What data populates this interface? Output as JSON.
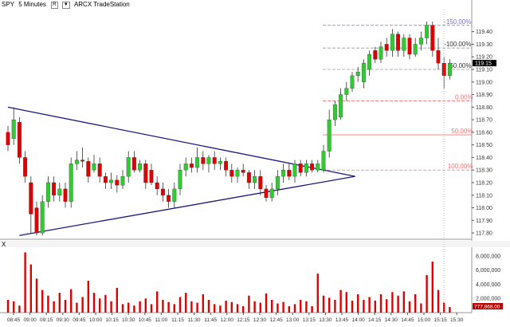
{
  "header": {
    "symbol": "SPY",
    "interval": "5 Minutes",
    "badge_r": "R",
    "badge_arrow": "▼",
    "source": "ARCX TradeStation"
  },
  "colors": {
    "up": "#2ecc2e",
    "down": "#e00000",
    "triangle": "#1a1a7a",
    "fib_blue": "#7070c8",
    "fib_red": "#ff7070",
    "volume": "#e00000",
    "price_marker_bg": "#000000"
  },
  "volume_panel": {
    "label": "X",
    "last_volume_label": "777,868.00"
  },
  "chart_data": {
    "type": "candlestick",
    "price_axis": {
      "ylim": [
        117.75,
        119.55
      ],
      "ticks": [
        "119.40",
        "119.30",
        "119.20",
        "119.10",
        "119.00",
        "118.90",
        "118.80",
        "118.70",
        "118.60",
        "118.50",
        "118.40",
        "118.30",
        "118.20",
        "118.10",
        "118.00",
        "117.90",
        "117.80"
      ],
      "last_price": "119.15"
    },
    "time_axis": {
      "labels": [
        "08:45",
        "09:00",
        "09:15",
        "09:30",
        "09:45",
        "10:00",
        "10:15",
        "10:30",
        "10:45",
        "11:00",
        "11:15",
        "11:30",
        "11:45",
        "12:00",
        "12:15",
        "12:30",
        "12:45",
        "13:00",
        "13:15",
        "13:30",
        "13:45",
        "14:00",
        "14:15",
        "14:30",
        "14:45",
        "15:00",
        "15:15",
        "15:30"
      ]
    },
    "candles": [
      {
        "o": 118.6,
        "c": 118.5,
        "h": 118.65,
        "l": 118.45
      },
      {
        "o": 118.55,
        "c": 118.7,
        "h": 118.8,
        "l": 118.5
      },
      {
        "o": 118.68,
        "c": 118.4,
        "h": 118.72,
        "l": 118.35
      },
      {
        "o": 118.4,
        "c": 118.25,
        "h": 118.45,
        "l": 118.2
      },
      {
        "o": 118.2,
        "c": 117.95,
        "h": 118.25,
        "l": 117.8
      },
      {
        "o": 118.0,
        "c": 117.8,
        "h": 118.05,
        "l": 117.78
      },
      {
        "o": 117.8,
        "c": 118.05,
        "h": 118.1,
        "l": 117.78
      },
      {
        "o": 118.05,
        "c": 118.2,
        "h": 118.25,
        "l": 118.0
      },
      {
        "o": 118.2,
        "c": 118.1,
        "h": 118.25,
        "l": 118.05
      },
      {
        "o": 118.1,
        "c": 118.15,
        "h": 118.2,
        "l": 118.05
      },
      {
        "o": 118.15,
        "c": 118.05,
        "h": 118.2,
        "l": 118.0
      },
      {
        "o": 118.05,
        "c": 118.35,
        "h": 118.4,
        "l": 118.0
      },
      {
        "o": 118.35,
        "c": 118.38,
        "h": 118.45,
        "l": 118.3
      },
      {
        "o": 118.38,
        "c": 118.37,
        "h": 118.48,
        "l": 118.32
      },
      {
        "o": 118.37,
        "c": 118.25,
        "h": 118.4,
        "l": 118.2
      },
      {
        "o": 118.3,
        "c": 118.35,
        "h": 118.42,
        "l": 118.28
      },
      {
        "o": 118.35,
        "c": 118.25,
        "h": 118.4,
        "l": 118.2
      },
      {
        "o": 118.25,
        "c": 118.2,
        "h": 118.28,
        "l": 118.15
      },
      {
        "o": 118.2,
        "c": 118.22,
        "h": 118.28,
        "l": 118.15
      },
      {
        "o": 118.22,
        "c": 118.18,
        "h": 118.26,
        "l": 118.12
      },
      {
        "o": 118.18,
        "c": 118.25,
        "h": 118.3,
        "l": 118.15
      },
      {
        "o": 118.25,
        "c": 118.4,
        "h": 118.45,
        "l": 118.2
      },
      {
        "o": 118.4,
        "c": 118.3,
        "h": 118.45,
        "l": 118.28
      },
      {
        "o": 118.3,
        "c": 118.35,
        "h": 118.38,
        "l": 118.28
      },
      {
        "o": 118.35,
        "c": 118.2,
        "h": 118.38,
        "l": 118.15
      },
      {
        "o": 118.3,
        "c": 118.2,
        "h": 118.35,
        "l": 118.18
      },
      {
        "o": 118.2,
        "c": 118.15,
        "h": 118.25,
        "l": 118.1
      },
      {
        "o": 118.15,
        "c": 118.1,
        "h": 118.2,
        "l": 118.05
      },
      {
        "o": 118.1,
        "c": 118.05,
        "h": 118.15,
        "l": 118.0
      },
      {
        "o": 118.05,
        "c": 118.15,
        "h": 118.2,
        "l": 118.0
      },
      {
        "o": 118.15,
        "c": 118.3,
        "h": 118.35,
        "l": 118.1
      },
      {
        "o": 118.3,
        "c": 118.35,
        "h": 118.4,
        "l": 118.25
      },
      {
        "o": 118.35,
        "c": 118.32,
        "h": 118.4,
        "l": 118.28
      },
      {
        "o": 118.32,
        "c": 118.4,
        "h": 118.48,
        "l": 118.28
      },
      {
        "o": 118.4,
        "c": 118.35,
        "h": 118.45,
        "l": 118.3
      },
      {
        "o": 118.35,
        "c": 118.4,
        "h": 118.42,
        "l": 118.28
      },
      {
        "o": 118.4,
        "c": 118.35,
        "h": 118.45,
        "l": 118.3
      },
      {
        "o": 118.35,
        "c": 118.37,
        "h": 118.4,
        "l": 118.3
      },
      {
        "o": 118.37,
        "c": 118.3,
        "h": 118.4,
        "l": 118.25
      },
      {
        "o": 118.3,
        "c": 118.25,
        "h": 118.35,
        "l": 118.2
      },
      {
        "o": 118.25,
        "c": 118.3,
        "h": 118.32,
        "l": 118.2
      },
      {
        "o": 118.3,
        "c": 118.28,
        "h": 118.35,
        "l": 118.25
      },
      {
        "o": 118.28,
        "c": 118.2,
        "h": 118.3,
        "l": 118.15
      },
      {
        "o": 118.2,
        "c": 118.25,
        "h": 118.3,
        "l": 118.15
      },
      {
        "o": 118.25,
        "c": 118.15,
        "h": 118.3,
        "l": 118.1
      },
      {
        "o": 118.15,
        "c": 118.08,
        "h": 118.18,
        "l": 118.05
      },
      {
        "o": 118.08,
        "c": 118.15,
        "h": 118.2,
        "l": 118.05
      },
      {
        "o": 118.15,
        "c": 118.25,
        "h": 118.3,
        "l": 118.1
      },
      {
        "o": 118.25,
        "c": 118.3,
        "h": 118.35,
        "l": 118.2
      },
      {
        "o": 118.3,
        "c": 118.25,
        "h": 118.35,
        "l": 118.22
      },
      {
        "o": 118.25,
        "c": 118.35,
        "h": 118.38,
        "l": 118.2
      },
      {
        "o": 118.35,
        "c": 118.28,
        "h": 118.38,
        "l": 118.25
      },
      {
        "o": 118.28,
        "c": 118.35,
        "h": 118.38,
        "l": 118.25
      },
      {
        "o": 118.35,
        "c": 118.3,
        "h": 118.38,
        "l": 118.28
      },
      {
        "o": 118.3,
        "c": 118.35,
        "h": 118.38,
        "l": 118.28
      },
      {
        "o": 118.3,
        "c": 118.45,
        "h": 118.5,
        "l": 118.28
      },
      {
        "o": 118.45,
        "c": 118.7,
        "h": 118.78,
        "l": 118.4
      },
      {
        "o": 118.7,
        "c": 118.82,
        "h": 118.85,
        "l": 118.65
      },
      {
        "o": 118.72,
        "c": 118.9,
        "h": 118.95,
        "l": 118.7
      },
      {
        "o": 118.9,
        "c": 118.95,
        "h": 119.0,
        "l": 118.85
      },
      {
        "o": 118.95,
        "c": 119.05,
        "h": 119.08,
        "l": 118.92
      },
      {
        "o": 119.05,
        "c": 119.08,
        "h": 119.12,
        "l": 119.0
      },
      {
        "o": 119.0,
        "c": 119.15,
        "h": 119.18,
        "l": 118.95
      },
      {
        "o": 119.1,
        "c": 119.22,
        "h": 119.25,
        "l": 119.05
      },
      {
        "o": 119.25,
        "c": 119.18,
        "h": 119.28,
        "l": 119.15
      },
      {
        "o": 119.18,
        "c": 119.28,
        "h": 119.32,
        "l": 119.15
      },
      {
        "o": 119.3,
        "c": 119.25,
        "h": 119.35,
        "l": 119.2
      },
      {
        "o": 119.25,
        "c": 119.38,
        "h": 119.42,
        "l": 119.2
      },
      {
        "o": 119.38,
        "c": 119.25,
        "h": 119.4,
        "l": 119.2
      },
      {
        "o": 119.25,
        "c": 119.35,
        "h": 119.38,
        "l": 119.2
      },
      {
        "o": 119.35,
        "c": 119.22,
        "h": 119.38,
        "l": 119.18
      },
      {
        "o": 119.22,
        "c": 119.3,
        "h": 119.35,
        "l": 119.2
      },
      {
        "o": 119.3,
        "c": 119.35,
        "h": 119.4,
        "l": 119.25
      },
      {
        "o": 119.35,
        "c": 119.45,
        "h": 119.48,
        "l": 119.3
      },
      {
        "o": 119.45,
        "c": 119.25,
        "h": 119.48,
        "l": 119.2
      },
      {
        "o": 119.25,
        "c": 119.15,
        "h": 119.35,
        "l": 119.1
      },
      {
        "o": 119.15,
        "c": 119.05,
        "h": 119.2,
        "l": 118.95
      },
      {
        "o": 119.05,
        "c": 119.15,
        "h": 119.18,
        "l": 119.02
      }
    ],
    "volume": [
      1800000,
      1600000,
      1000000,
      8500000,
      6800000,
      4800000,
      3200000,
      2400000,
      1600000,
      2800000,
      1800000,
      3300000,
      1400000,
      2200000,
      4500000,
      2800000,
      2000000,
      2500000,
      1600000,
      3500000,
      1200000,
      1400000,
      1000000,
      1600000,
      2000000,
      1200000,
      3000000,
      1800000,
      1500000,
      1200000,
      2200000,
      2800000,
      1600000,
      1400000,
      2600000,
      1800000,
      1200000,
      1000000,
      1700000,
      1500000,
      1200000,
      900000,
      2400000,
      1600000,
      1400000,
      2700000,
      1800000,
      1300000,
      1500000,
      900000,
      1200000,
      1800000,
      1600000,
      900000,
      5500000,
      2400000,
      2100000,
      1800000,
      3200000,
      2900000,
      1700000,
      2600000,
      1800000,
      2200000,
      1700000,
      2600000,
      1900000,
      2900000,
      2400000,
      3000000,
      1600000,
      2600000,
      1300000,
      5300000,
      7200000,
      3200000,
      1400000,
      800000
    ],
    "volume_axis": {
      "ylim": [
        0,
        9000000
      ],
      "ticks": [
        "8,000,000",
        "6,000,000",
        "4,000,000",
        "2,000,000"
      ]
    },
    "fibonacci": [
      {
        "label": "-150.00%",
        "price": 119.45,
        "color": "blue"
      },
      {
        "label": "-100.00%",
        "price": 119.27,
        "color": "gray"
      },
      {
        "label": "-50.00%",
        "price": 119.1,
        "color": "gray"
      },
      {
        "label": "0.00%",
        "price": 118.85,
        "color": "red"
      },
      {
        "label": "50.00%",
        "price": 118.58,
        "color": "red"
      },
      {
        "label": "100.00%",
        "price": 118.3,
        "color": "red"
      }
    ],
    "triangle": {
      "upper": [
        {
          "i": 0,
          "p": 118.8
        },
        {
          "i": 60.5,
          "p": 118.25
        }
      ],
      "lower": [
        {
          "i": 2,
          "p": 117.78
        },
        {
          "i": 60.5,
          "p": 118.25
        }
      ]
    }
  }
}
